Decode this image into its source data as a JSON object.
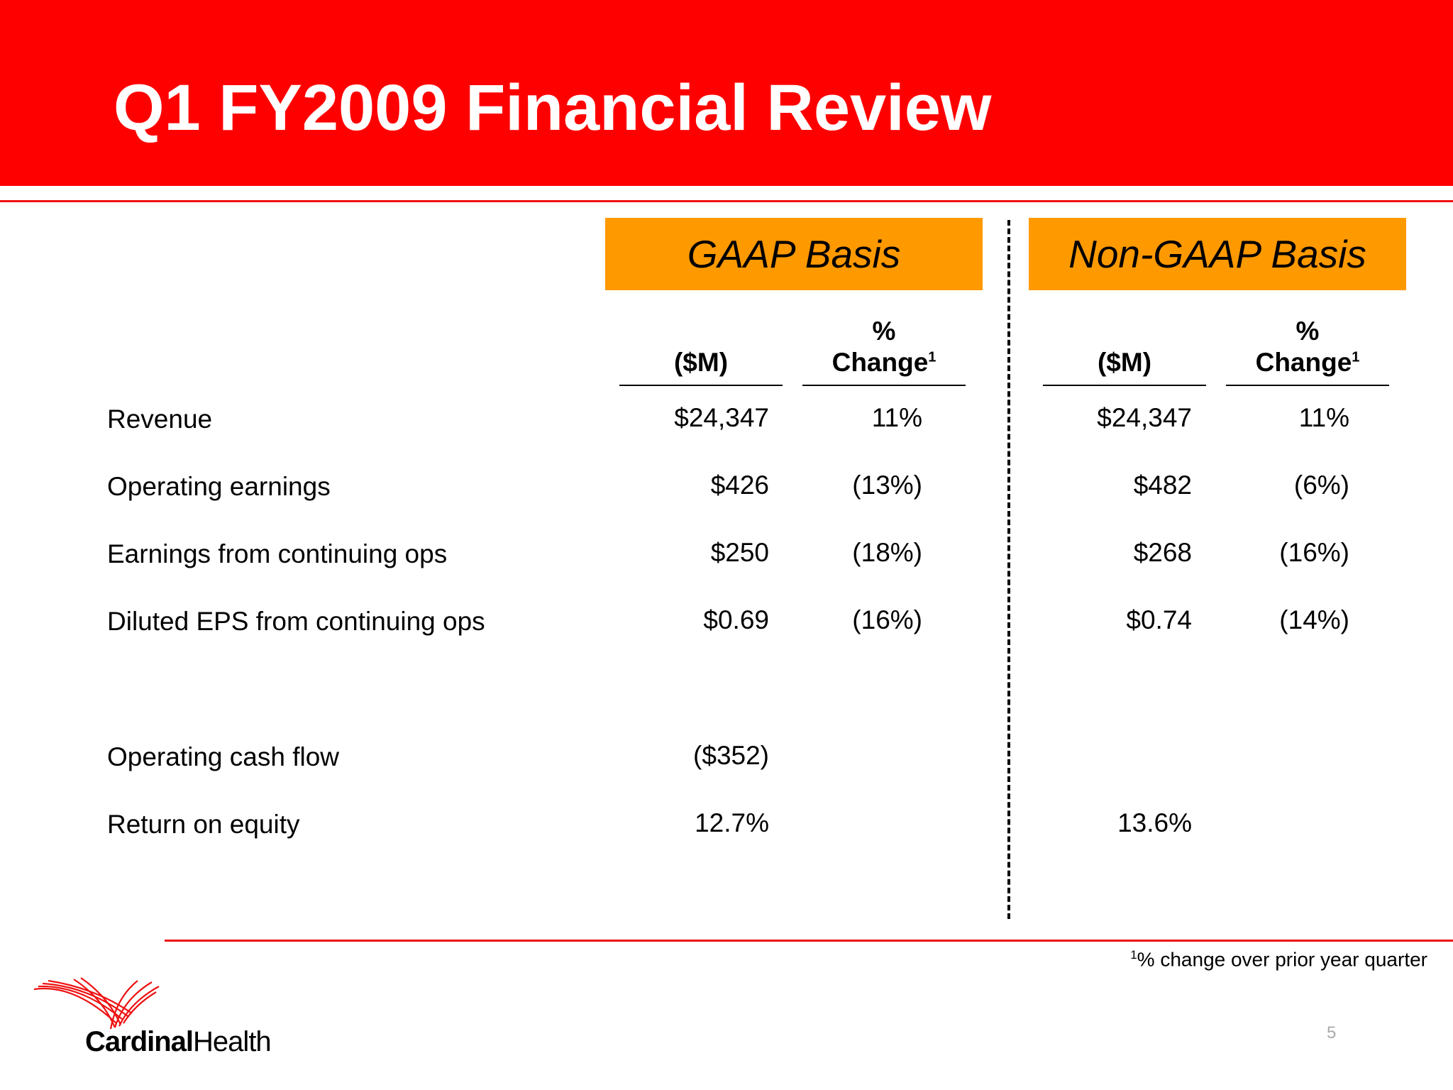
{
  "title": "Q1 FY2009 Financial Review",
  "basis": {
    "gaap": "GAAP Basis",
    "non_gaap": "Non-GAAP Basis"
  },
  "columns": {
    "amount": "($M)",
    "pct_line1": "%",
    "pct_line2": "Change",
    "pct_sup": "1"
  },
  "rows": [
    {
      "label": "Revenue",
      "gaap_amount": "$24,347",
      "gaap_pct": "11%",
      "ng_amount": "$24,347",
      "ng_pct": "11%"
    },
    {
      "label": "Operating earnings",
      "gaap_amount": "$426",
      "gaap_pct": "(13%)",
      "ng_amount": "$482",
      "ng_pct": "(6%)"
    },
    {
      "label": "Earnings from continuing ops",
      "gaap_amount": "$250",
      "gaap_pct": "(18%)",
      "ng_amount": "$268",
      "ng_pct": "(16%)"
    },
    {
      "label": "Diluted EPS from continuing ops",
      "gaap_amount": "$0.69",
      "gaap_pct": "(16%)",
      "ng_amount": "$0.74",
      "ng_pct": "(14%)"
    },
    {
      "label": "Operating cash flow",
      "gaap_amount": "($352)",
      "gaap_pct": "",
      "ng_amount": "",
      "ng_pct": ""
    },
    {
      "label": "Return on equity",
      "gaap_amount": "12.7%",
      "gaap_pct": "",
      "ng_amount": "13.6%",
      "ng_pct": ""
    }
  ],
  "footnote": {
    "sup": "1",
    "text": "% change over prior year quarter"
  },
  "page_number": "5",
  "logo": {
    "word1": "Cardinal",
    "word2": "Health",
    "icon": "cardinal-health-logo-icon"
  },
  "colors": {
    "header_red": "#ff0000",
    "basis_orange": "#ff9900",
    "rule_red": "#ee1111"
  }
}
